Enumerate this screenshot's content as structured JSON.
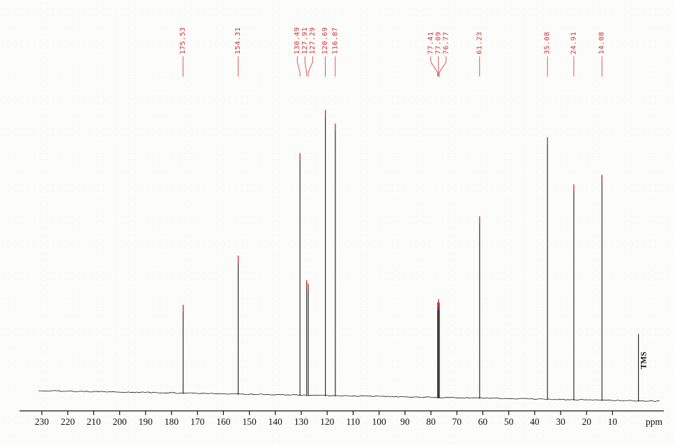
{
  "chart_data": {
    "type": "line",
    "subtype": "13C NMR spectrum",
    "xlabel": "ppm",
    "grid": false,
    "legend": null,
    "x_axis": {
      "direction": "reversed",
      "range": [
        235,
        -8
      ],
      "unit_label": "ppm",
      "ticks": [
        230,
        220,
        210,
        200,
        190,
        180,
        170,
        160,
        150,
        140,
        130,
        120,
        110,
        100,
        90,
        80,
        70,
        60,
        50,
        40,
        30,
        20,
        10
      ]
    },
    "peaks": [
      {
        "ppm": 175.53,
        "intensity": 0.26,
        "label": "175.53"
      },
      {
        "ppm": 154.31,
        "intensity": 0.41,
        "label": "154.31"
      },
      {
        "ppm": 130.49,
        "intensity": 0.72,
        "label": "130.49"
      },
      {
        "ppm": 127.91,
        "intensity": 0.34,
        "label": "127.91"
      },
      {
        "ppm": 127.29,
        "intensity": 0.33,
        "label": "127.29"
      },
      {
        "ppm": 120.69,
        "intensity": 0.85,
        "label": "120.69"
      },
      {
        "ppm": 116.87,
        "intensity": 0.81,
        "label": "116.87"
      },
      {
        "ppm": 77.41,
        "intensity": 0.28,
        "label": "77.41"
      },
      {
        "ppm": 77.09,
        "intensity": 0.29,
        "label": "77.09"
      },
      {
        "ppm": 76.77,
        "intensity": 0.28,
        "label": "76.77"
      },
      {
        "ppm": 61.23,
        "intensity": 0.54,
        "label": "61.23"
      },
      {
        "ppm": 35.08,
        "intensity": 0.78,
        "label": "35.08"
      },
      {
        "ppm": 24.91,
        "intensity": 0.64,
        "label": "24.91"
      },
      {
        "ppm": 14.08,
        "intensity": 0.67,
        "label": "14.08"
      },
      {
        "ppm": 0.0,
        "intensity": 0.2,
        "label": null,
        "annotation": "TMS"
      }
    ],
    "annotations": {
      "tms_label": "TMS",
      "axis_unit_label": "ppm"
    },
    "colors": {
      "trace": "#1c1c1c",
      "peak_label": "#cc3333",
      "axis": "#111111",
      "background": "#fcfcfa"
    }
  }
}
